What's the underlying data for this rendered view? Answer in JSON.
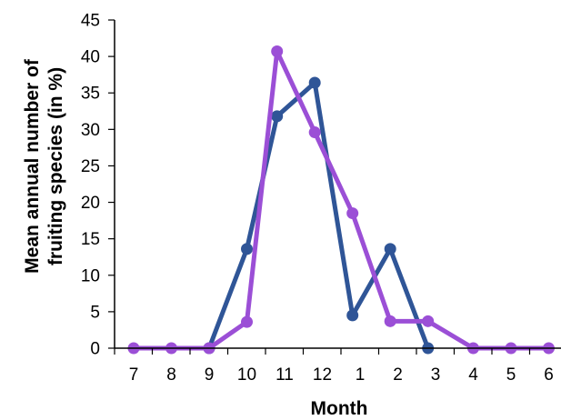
{
  "chart_data": {
    "type": "line",
    "title": "",
    "xlabel": "Month",
    "ylabel_lines": [
      "Mean annual number of",
      "fruiting species (in %)"
    ],
    "categories": [
      "7",
      "8",
      "9",
      "10",
      "11",
      "12",
      "1",
      "2",
      "3",
      "4",
      "5",
      "6"
    ],
    "ylim": [
      0,
      45
    ],
    "yticks": [
      0,
      5,
      10,
      15,
      20,
      25,
      30,
      35,
      40,
      45
    ],
    "grid": false,
    "legend": "none",
    "series": [
      {
        "color": "#2f5597",
        "points": [
          [
            2,
            0
          ],
          [
            3,
            13.6
          ],
          [
            3.8,
            31.8
          ],
          [
            4.8,
            36.4
          ],
          [
            5.8,
            4.5
          ],
          [
            6.8,
            13.6
          ],
          [
            7.8,
            0
          ]
        ]
      },
      {
        "color": "#9b4fd6",
        "points": [
          [
            0,
            0
          ],
          [
            1,
            0
          ],
          [
            2,
            0
          ],
          [
            3,
            3.6
          ],
          [
            3.8,
            40.7
          ],
          [
            4.8,
            29.6
          ],
          [
            5.8,
            18.5
          ],
          [
            6.8,
            3.7
          ],
          [
            7.8,
            3.7
          ],
          [
            9,
            0
          ],
          [
            10,
            0
          ],
          [
            11,
            0
          ]
        ]
      }
    ]
  }
}
